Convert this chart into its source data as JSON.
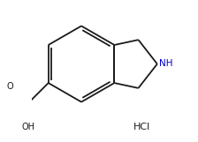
{
  "bg_color": "#ffffff",
  "line_color": "#1a1a1a",
  "nh_color": "#0000cc",
  "figsize": [
    2.24,
    1.61
  ],
  "dpi": 100,
  "hcl_label": "HCl",
  "nh_label": "NH"
}
